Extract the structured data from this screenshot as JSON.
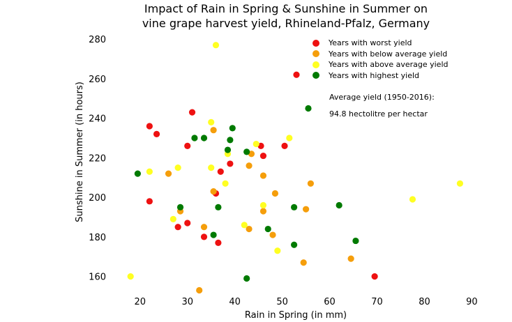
{
  "chart_data": {
    "type": "scatter",
    "title_line1": "Impact of Rain in Spring & Sunshine in Summer on",
    "title_line2": "vine grape harvest yield, Rhineland-Pfalz, Germany",
    "xlabel": "Rain in Spring (in mm)",
    "ylabel": "Sunshine in Summer (in hours)",
    "xlim": [
      14,
      92
    ],
    "ylim": [
      150,
      285
    ],
    "xticks": [
      20,
      30,
      40,
      50,
      60,
      70,
      80,
      90
    ],
    "yticks": [
      160,
      180,
      200,
      220,
      240,
      260,
      280
    ],
    "grid": false,
    "legend_position": "top-right",
    "annotation_line1": "Average yield (1950-2016):",
    "annotation_line2": "94.8 hectolitre per hectar",
    "series": [
      {
        "name": "Years with worst yield",
        "color": "#ee1111",
        "points": [
          [
            22,
            236
          ],
          [
            23.5,
            232
          ],
          [
            31,
            243
          ],
          [
            30,
            226
          ],
          [
            22,
            198
          ],
          [
            28,
            185
          ],
          [
            30,
            187
          ],
          [
            33.5,
            180
          ],
          [
            36,
            202
          ],
          [
            36.5,
            177
          ],
          [
            37,
            213
          ],
          [
            39,
            217
          ],
          [
            45.5,
            226
          ],
          [
            46,
            221
          ],
          [
            50.5,
            226
          ],
          [
            53,
            262
          ],
          [
            69.5,
            160
          ]
        ]
      },
      {
        "name": "Years with below average yield",
        "color": "#f59e0b",
        "points": [
          [
            26,
            212
          ],
          [
            28.5,
            193
          ],
          [
            33.5,
            185
          ],
          [
            35.5,
            203
          ],
          [
            35.5,
            234
          ],
          [
            43,
            216
          ],
          [
            43.5,
            222
          ],
          [
            43,
            184
          ],
          [
            46,
            211
          ],
          [
            46,
            193
          ],
          [
            48,
            181
          ],
          [
            48.5,
            202
          ],
          [
            54.5,
            167
          ],
          [
            55,
            194
          ],
          [
            56,
            207
          ],
          [
            64.5,
            169
          ],
          [
            32.5,
            153
          ]
        ]
      },
      {
        "name": "Years with above average yield",
        "color": "#ffff22",
        "points": [
          [
            18,
            160
          ],
          [
            22,
            213
          ],
          [
            27,
            189
          ],
          [
            28,
            215
          ],
          [
            35,
            238
          ],
          [
            35,
            215
          ],
          [
            36,
            277
          ],
          [
            38,
            207
          ],
          [
            38.5,
            222
          ],
          [
            42,
            186
          ],
          [
            44.5,
            227
          ],
          [
            46,
            196
          ],
          [
            49,
            173
          ],
          [
            51.5,
            230
          ],
          [
            77.5,
            199
          ],
          [
            87.5,
            207
          ]
        ]
      },
      {
        "name": "Years with highest yield",
        "color": "#007a00",
        "points": [
          [
            19.5,
            212
          ],
          [
            28.5,
            195
          ],
          [
            31.5,
            230
          ],
          [
            33.5,
            230
          ],
          [
            35.5,
            181
          ],
          [
            36.5,
            195
          ],
          [
            38.5,
            224
          ],
          [
            39,
            229
          ],
          [
            39.5,
            235
          ],
          [
            42.5,
            223
          ],
          [
            42.5,
            159
          ],
          [
            47,
            184
          ],
          [
            52.5,
            195
          ],
          [
            52.5,
            176
          ],
          [
            55.5,
            245
          ],
          [
            62,
            196
          ],
          [
            65.5,
            178
          ]
        ]
      }
    ]
  }
}
